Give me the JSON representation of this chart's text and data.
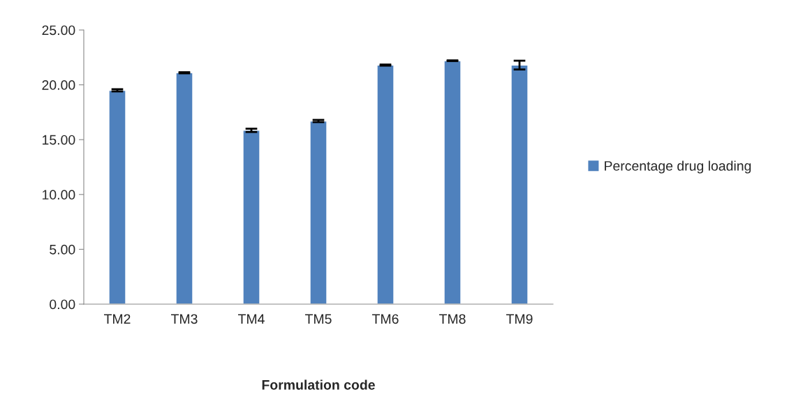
{
  "chart_data": {
    "type": "bar",
    "xlabel": "Formulation code",
    "categories": [
      "TM2",
      "TM3",
      "TM4",
      "TM5",
      "TM6",
      "TM8",
      "TM9"
    ],
    "series": [
      {
        "name": "Percentage drug loading",
        "color": "#4f81bd",
        "values": [
          19.5,
          21.1,
          15.85,
          16.7,
          21.8,
          22.2,
          21.8
        ],
        "errors": [
          0.1,
          0.05,
          0.15,
          0.1,
          0.05,
          0.03,
          0.4
        ]
      }
    ],
    "ylim": [
      0,
      25
    ],
    "yticks": [
      {
        "value": 0,
        "label": "0.00"
      },
      {
        "value": 5,
        "label": "5.00"
      },
      {
        "value": 10,
        "label": "10.00"
      },
      {
        "value": 15,
        "label": "15.00"
      },
      {
        "value": 20,
        "label": "20.00"
      },
      {
        "value": 25,
        "label": "25.00"
      }
    ],
    "grid": false,
    "legend": "right"
  }
}
